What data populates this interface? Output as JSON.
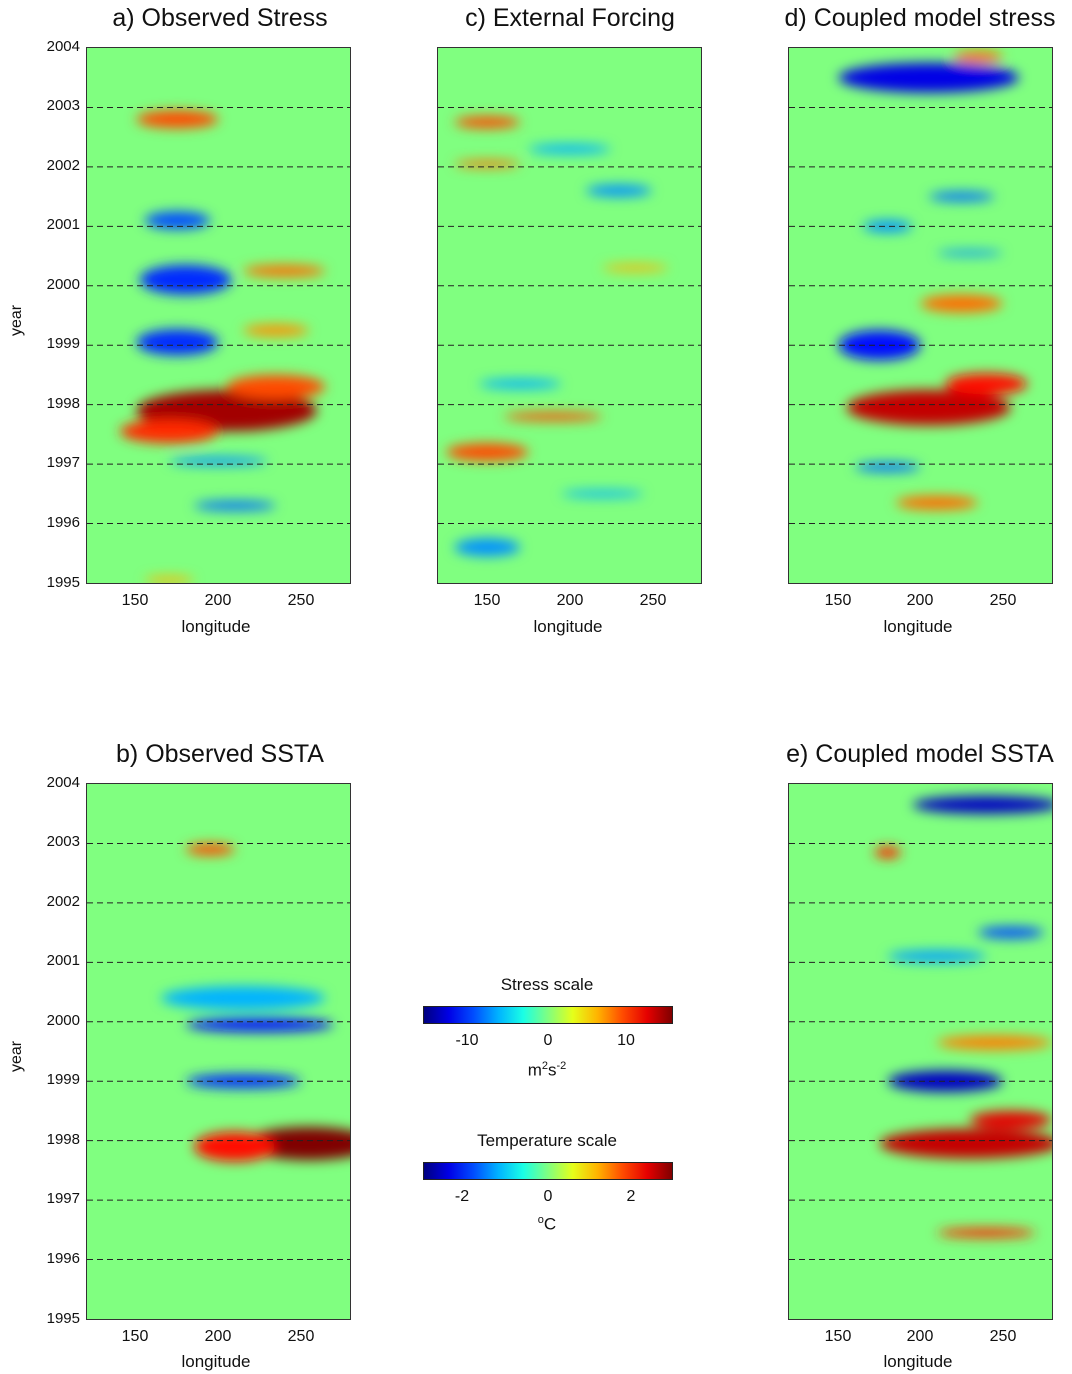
{
  "panels": [
    {
      "id": "a",
      "title": "a) Observed Stress",
      "field": "stress_obs"
    },
    {
      "id": "c",
      "title": "c) External Forcing",
      "field": "forcing"
    },
    {
      "id": "d",
      "title": "d) Coupled model stress",
      "field": "stress_model"
    },
    {
      "id": "b",
      "title": "b) Observed SSTA",
      "field": "ssta_obs"
    },
    {
      "id": "e",
      "title": "e) Coupled model SSTA",
      "field": "ssta_model"
    }
  ],
  "axis": {
    "xlabel": "longitude",
    "ylabel": "year",
    "x_ticks": [
      "150",
      "200",
      "250"
    ],
    "y_ticks": [
      "2004",
      "2003",
      "2002",
      "2001",
      "2000",
      "1999",
      "1998",
      "1997",
      "1996",
      "1995"
    ]
  },
  "colorbars": {
    "stress": {
      "title": "Stress scale",
      "ticks": [
        "-10",
        "0",
        "10"
      ],
      "unit_base": "m",
      "unit_sup1": "2",
      "unit_mid": "s",
      "unit_sup2": "-2"
    },
    "temperature": {
      "title": "Temperature scale",
      "ticks": [
        "-2",
        "0",
        "2"
      ],
      "unit_sup": "o",
      "unit_base": "C"
    }
  },
  "chart_data": {
    "type": "heatmap",
    "xlim": [
      120,
      280
    ],
    "ylim": [
      1995,
      2004
    ],
    "dashed_year_lines": [
      1996,
      1997,
      1998,
      1999,
      2000,
      2001,
      2002,
      2003
    ],
    "colormap": "jet",
    "stress_range": [
      -15,
      15
    ],
    "temperature_range": [
      -3,
      3
    ],
    "fields": {
      "stress_obs": [
        {
          "lon": 205,
          "year": 1997.9,
          "value": 14,
          "rlon": 55,
          "ryear": 0.35
        },
        {
          "lon": 170,
          "year": 1997.55,
          "value": 10,
          "rlon": 30,
          "ryear": 0.2
        },
        {
          "lon": 235,
          "year": 1998.3,
          "value": 9,
          "rlon": 30,
          "ryear": 0.2
        },
        {
          "lon": 175,
          "year": 1999.05,
          "value": -10,
          "rlon": 25,
          "ryear": 0.22
        },
        {
          "lon": 180,
          "year": 2000.1,
          "value": -10,
          "rlon": 28,
          "ryear": 0.25
        },
        {
          "lon": 240,
          "year": 2000.25,
          "value": 8,
          "rlon": 25,
          "ryear": 0.1
        },
        {
          "lon": 235,
          "year": 1999.25,
          "value": 7,
          "rlon": 20,
          "ryear": 0.1
        },
        {
          "lon": 175,
          "year": 2001.1,
          "value": -9,
          "rlon": 20,
          "ryear": 0.15
        },
        {
          "lon": 175,
          "year": 2002.8,
          "value": 9,
          "rlon": 25,
          "ryear": 0.15
        },
        {
          "lon": 210,
          "year": 1996.3,
          "value": -8,
          "rlon": 25,
          "ryear": 0.08
        },
        {
          "lon": 200,
          "year": 1997.05,
          "value": -7,
          "rlon": 30,
          "ryear": 0.07
        },
        {
          "lon": 170,
          "year": 1995.05,
          "value": 6,
          "rlon": 15,
          "ryear": 0.06
        }
      ],
      "forcing": [
        {
          "lon": 150,
          "year": 2002.75,
          "value": 9,
          "rlon": 20,
          "ryear": 0.1
        },
        {
          "lon": 190,
          "year": 1997.8,
          "value": 9,
          "rlon": 30,
          "ryear": 0.07
        },
        {
          "lon": 150,
          "year": 1997.2,
          "value": 9,
          "rlon": 25,
          "ryear": 0.15
        },
        {
          "lon": 150,
          "year": 2002.05,
          "value": 8,
          "rlon": 20,
          "ryear": 0.06
        },
        {
          "lon": 170,
          "year": 1998.35,
          "value": -6,
          "rlon": 25,
          "ryear": 0.08
        },
        {
          "lon": 230,
          "year": 2001.6,
          "value": -7,
          "rlon": 20,
          "ryear": 0.1
        },
        {
          "lon": 200,
          "year": 2002.3,
          "value": -6,
          "rlon": 25,
          "ryear": 0.08
        },
        {
          "lon": 150,
          "year": 1995.6,
          "value": -7,
          "rlon": 20,
          "ryear": 0.15
        },
        {
          "lon": 240,
          "year": 2000.3,
          "value": 6,
          "rlon": 20,
          "ryear": 0.06
        },
        {
          "lon": 220,
          "year": 1996.5,
          "value": -6,
          "rlon": 25,
          "ryear": 0.06
        }
      ],
      "stress_model": [
        {
          "lon": 205,
          "year": 1997.95,
          "value": 13,
          "rlon": 50,
          "ryear": 0.3
        },
        {
          "lon": 240,
          "year": 1998.35,
          "value": 11,
          "rlon": 25,
          "ryear": 0.18
        },
        {
          "lon": 175,
          "year": 1999.0,
          "value": -11,
          "rlon": 25,
          "ryear": 0.25
        },
        {
          "lon": 205,
          "year": 2003.5,
          "value": -12,
          "rlon": 55,
          "ryear": 0.25
        },
        {
          "lon": 235,
          "year": 2003.85,
          "value": 8,
          "rlon": 15,
          "ryear": 0.1
        },
        {
          "lon": 225,
          "year": 1999.7,
          "value": 8,
          "rlon": 25,
          "ryear": 0.15
        },
        {
          "lon": 210,
          "year": 1996.35,
          "value": 8,
          "rlon": 25,
          "ryear": 0.12
        },
        {
          "lon": 180,
          "year": 1996.95,
          "value": -8,
          "rlon": 20,
          "ryear": 0.08
        },
        {
          "lon": 225,
          "year": 2001.5,
          "value": -8,
          "rlon": 20,
          "ryear": 0.08
        },
        {
          "lon": 180,
          "year": 2001.0,
          "value": -7,
          "rlon": 15,
          "ryear": 0.1
        },
        {
          "lon": 230,
          "year": 2000.55,
          "value": -7,
          "rlon": 20,
          "ryear": 0.05
        }
      ],
      "ssta_obs": [
        {
          "lon": 255,
          "year": 1997.95,
          "value": 3,
          "rlon": 40,
          "ryear": 0.28
        },
        {
          "lon": 210,
          "year": 1997.9,
          "value": 2.2,
          "rlon": 25,
          "ryear": 0.25
        },
        {
          "lon": 215,
          "year": 1999.0,
          "value": -2,
          "rlon": 35,
          "ryear": 0.12
        },
        {
          "lon": 225,
          "year": 1999.95,
          "value": -2.2,
          "rlon": 45,
          "ryear": 0.12
        },
        {
          "lon": 195,
          "year": 2002.9,
          "value": 1.8,
          "rlon": 15,
          "ryear": 0.1
        },
        {
          "lon": 215,
          "year": 2000.4,
          "value": -1.2,
          "rlon": 50,
          "ryear": 0.2
        }
      ],
      "ssta_model": [
        {
          "lon": 230,
          "year": 1997.95,
          "value": 2.6,
          "rlon": 55,
          "ryear": 0.25
        },
        {
          "lon": 255,
          "year": 1998.35,
          "value": 2.4,
          "rlon": 25,
          "ryear": 0.15
        },
        {
          "lon": 215,
          "year": 1999.0,
          "value": -2.6,
          "rlon": 35,
          "ryear": 0.18
        },
        {
          "lon": 240,
          "year": 2003.65,
          "value": -2.6,
          "rlon": 45,
          "ryear": 0.15
        },
        {
          "lon": 180,
          "year": 2002.85,
          "value": 2,
          "rlon": 8,
          "ryear": 0.1
        },
        {
          "lon": 240,
          "year": 1996.45,
          "value": 2,
          "rlon": 30,
          "ryear": 0.08
        },
        {
          "lon": 245,
          "year": 1999.65,
          "value": 1.5,
          "rlon": 35,
          "ryear": 0.12
        },
        {
          "lon": 255,
          "year": 2001.5,
          "value": -1.8,
          "rlon": 20,
          "ryear": 0.1
        },
        {
          "lon": 210,
          "year": 2001.1,
          "value": -1.3,
          "rlon": 30,
          "ryear": 0.1
        }
      ]
    }
  }
}
